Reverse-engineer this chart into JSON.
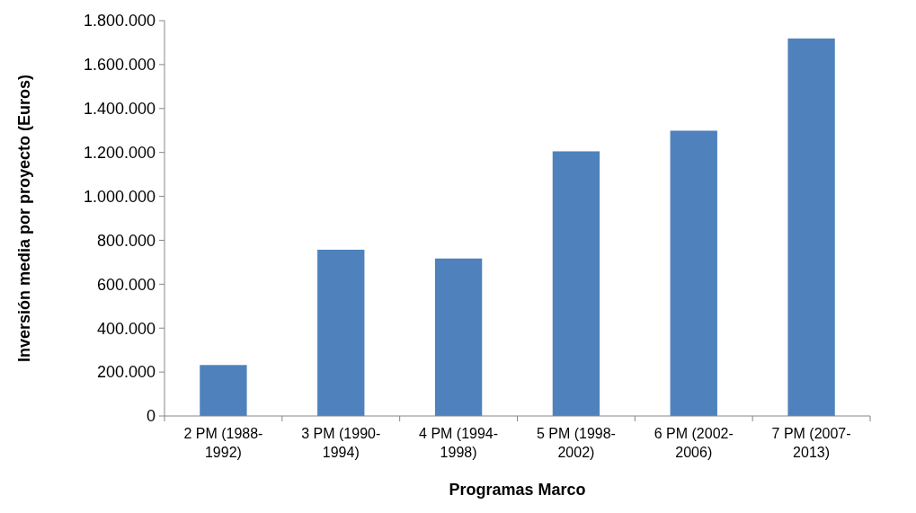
{
  "chart_data": {
    "type": "bar",
    "xlabel": "Programas Marco",
    "ylabel": "Inversión media por proyecto (Euros)",
    "categories": [
      "2 PM (1988-1992)",
      "3 PM (1990-1994)",
      "4 PM (1994-1998)",
      "5 PM (1998-2002)",
      "6 PM (2002-2006)",
      "7 PM (2007-2013)"
    ],
    "values": [
      232000,
      757000,
      717000,
      1205000,
      1299000,
      1719000
    ],
    "color": "#4f81bd",
    "ylim": [
      0,
      1800000
    ],
    "yticks": [
      {
        "value": 0,
        "label": "0"
      },
      {
        "value": 200000,
        "label": "200.000"
      },
      {
        "value": 400000,
        "label": "400.000"
      },
      {
        "value": 600000,
        "label": "600.000"
      },
      {
        "value": 800000,
        "label": "800.000"
      },
      {
        "value": 1000000,
        "label": "1.000.000"
      },
      {
        "value": 1200000,
        "label": "1.200.000"
      },
      {
        "value": 1400000,
        "label": "1.400.000"
      },
      {
        "value": 1600000,
        "label": "1.600.000"
      },
      {
        "value": 1800000,
        "label": "1.800.000"
      }
    ]
  }
}
